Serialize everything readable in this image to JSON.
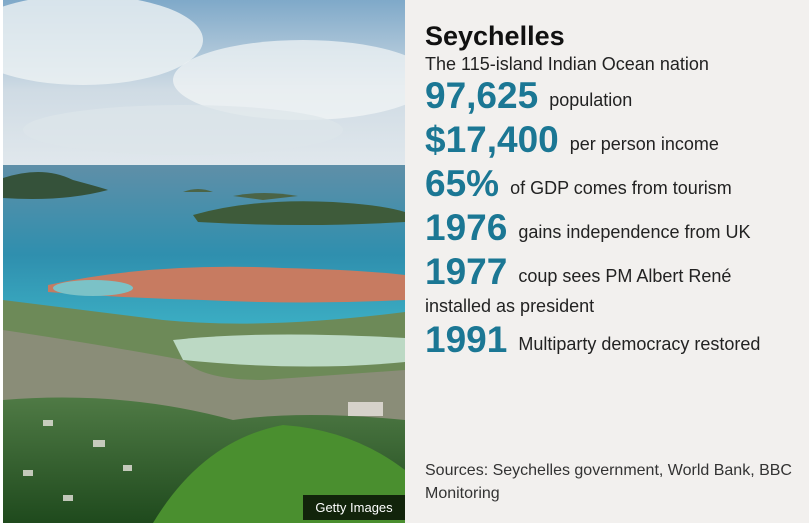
{
  "image": {
    "credit": "Getty Images"
  },
  "header": {
    "title": "Seychelles",
    "subtitle": "The 115-island Indian Ocean nation"
  },
  "facts": [
    {
      "figure": "97,625",
      "text": "population"
    },
    {
      "figure": "$17,400",
      "text": "per person income"
    },
    {
      "figure": "65%",
      "text": "of GDP comes from tourism"
    },
    {
      "figure": "1976",
      "text": "gains independence from UK"
    },
    {
      "figure": "1977",
      "text": "coup sees PM Albert René installed as president"
    },
    {
      "figure": "1991",
      "text": "Multiparty democracy restored"
    }
  ],
  "sources": "Sources: Seychelles government, World Bank, BBC Monitoring"
}
